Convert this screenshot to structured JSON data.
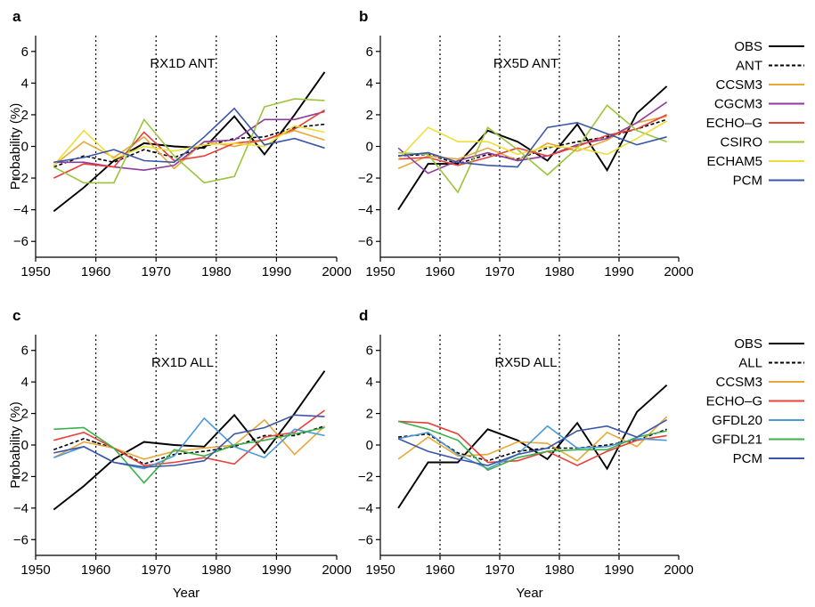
{
  "chart_data": [
    {
      "panel": "a",
      "title": "RX1D ANT",
      "type": "line",
      "xlabel": "",
      "ylabel": "Probability (%)",
      "xlim": [
        1950,
        2000
      ],
      "ylim": [
        -7,
        7
      ],
      "xticks": [
        1950,
        1960,
        1970,
        1980,
        1990,
        2000
      ],
      "yticks": [
        -6,
        -4,
        -2,
        0,
        2,
        4,
        6
      ],
      "vlines": [
        1960,
        1970,
        1980,
        1990
      ],
      "x": [
        1953,
        1958,
        1963,
        1968,
        1973,
        1978,
        1983,
        1988,
        1993,
        1998
      ],
      "series": [
        {
          "name": "OBS",
          "color": "#000000",
          "dash": "solid",
          "values": [
            -4.1,
            -2.6,
            -0.9,
            0.2,
            0.0,
            -0.1,
            1.9,
            -0.5,
            2.0,
            4.7
          ]
        },
        {
          "name": "ANT",
          "color": "#000000",
          "dash": "dashed",
          "values": [
            -1.3,
            -0.6,
            -1.0,
            -0.2,
            -0.7,
            0.0,
            0.5,
            0.6,
            1.2,
            1.4
          ]
        },
        {
          "name": "CCSM3",
          "color": "#E8A838",
          "dash": "solid",
          "values": [
            -1.2,
            0.3,
            -0.7,
            0.6,
            -1.4,
            0.3,
            0.0,
            0.4,
            1.0,
            0.4
          ]
        },
        {
          "name": "CGCM3",
          "color": "#8E3A9E",
          "dash": "solid",
          "values": [
            -1.0,
            -1.0,
            -1.3,
            -1.5,
            -1.2,
            0.3,
            0.4,
            1.7,
            1.7,
            2.2
          ]
        },
        {
          "name": "ECHO–G",
          "color": "#E8413A",
          "dash": "solid",
          "values": [
            -2.0,
            -1.1,
            -1.3,
            0.9,
            -0.9,
            -0.6,
            0.2,
            0.4,
            1.1,
            2.3
          ]
        },
        {
          "name": "CSIRO",
          "color": "#9CC43A",
          "dash": "solid",
          "values": [
            -1.3,
            -2.3,
            -2.3,
            1.7,
            -0.6,
            -2.3,
            -1.9,
            2.5,
            3.0,
            2.9
          ]
        },
        {
          "name": "ECHAM5",
          "color": "#EDDF3A",
          "dash": "solid",
          "values": [
            -1.2,
            1.0,
            -0.8,
            0.0,
            -0.3,
            0.1,
            0.2,
            0.0,
            1.3,
            0.9
          ]
        },
        {
          "name": "PCM",
          "color": "#3A56A8",
          "dash": "solid",
          "values": [
            -1.0,
            -0.7,
            -0.2,
            -0.9,
            -1.0,
            0.6,
            2.4,
            0.1,
            0.5,
            -0.1
          ]
        }
      ]
    },
    {
      "panel": "b",
      "title": "RX5D ANT",
      "type": "line",
      "xlabel": "",
      "ylabel": "",
      "xlim": [
        1950,
        2000
      ],
      "ylim": [
        -7,
        7
      ],
      "xticks": [
        1950,
        1960,
        1970,
        1980,
        1990,
        2000
      ],
      "yticks": [
        -6,
        -4,
        -2,
        0,
        2,
        4,
        6
      ],
      "vlines": [
        1960,
        1970,
        1980,
        1990
      ],
      "x": [
        1953,
        1958,
        1963,
        1968,
        1973,
        1978,
        1983,
        1988,
        1993,
        1998
      ],
      "series": [
        {
          "name": "OBS",
          "color": "#000000",
          "dash": "solid",
          "values": [
            -4.0,
            -1.1,
            -1.1,
            1.0,
            0.3,
            -0.9,
            1.4,
            -1.5,
            2.1,
            3.8
          ]
        },
        {
          "name": "ANT",
          "color": "#000000",
          "dash": "dashed",
          "values": [
            -0.6,
            -0.5,
            -1.1,
            -0.5,
            -0.8,
            -0.1,
            0.3,
            0.6,
            1.1,
            1.7
          ]
        },
        {
          "name": "CCSM3",
          "color": "#E8A838",
          "dash": "solid",
          "values": [
            -1.4,
            -0.6,
            -0.8,
            -0.1,
            -0.9,
            0.2,
            -0.3,
            0.4,
            1.5,
            1.9
          ]
        },
        {
          "name": "CGCM3",
          "color": "#8E3A9E",
          "dash": "solid",
          "values": [
            -0.1,
            -1.7,
            -0.9,
            -0.4,
            -0.9,
            -0.6,
            0.1,
            0.5,
            1.5,
            2.8
          ]
        },
        {
          "name": "ECHO–G",
          "color": "#E8413A",
          "dash": "solid",
          "values": [
            -0.8,
            -0.7,
            -1.2,
            -0.7,
            -0.1,
            -0.6,
            0.0,
            0.7,
            1.1,
            2.0
          ]
        },
        {
          "name": "CSIRO",
          "color": "#9CC43A",
          "dash": "solid",
          "values": [
            -0.4,
            -0.5,
            -2.9,
            1.2,
            -0.2,
            -1.8,
            -0.1,
            2.6,
            1.0,
            0.3
          ]
        },
        {
          "name": "ECHAM5",
          "color": "#EDDF3A",
          "dash": "solid",
          "values": [
            -0.8,
            1.2,
            0.3,
            0.3,
            -0.5,
            0.0,
            -0.1,
            -0.5,
            0.5,
            1.6
          ]
        },
        {
          "name": "PCM",
          "color": "#3A56A8",
          "dash": "solid",
          "values": [
            -0.6,
            -0.4,
            -1.0,
            -1.2,
            -1.3,
            1.2,
            1.5,
            0.8,
            0.1,
            0.6
          ]
        }
      ]
    },
    {
      "panel": "c",
      "title": "RX1D ALL",
      "type": "line",
      "xlabel": "Year",
      "ylabel": "Probability (%)",
      "xlim": [
        1950,
        2000
      ],
      "ylim": [
        -7,
        7
      ],
      "xticks": [
        1950,
        1960,
        1970,
        1980,
        1990,
        2000
      ],
      "yticks": [
        -6,
        -4,
        -2,
        0,
        2,
        4,
        6
      ],
      "vlines": [
        1960,
        1970,
        1980,
        1990
      ],
      "x": [
        1953,
        1958,
        1963,
        1968,
        1973,
        1978,
        1983,
        1988,
        1993,
        1998
      ],
      "series": [
        {
          "name": "OBS",
          "color": "#000000",
          "dash": "solid",
          "values": [
            -4.1,
            -2.6,
            -0.9,
            0.2,
            0.0,
            -0.1,
            1.9,
            -0.5,
            2.0,
            4.7
          ]
        },
        {
          "name": "ALL",
          "color": "#000000",
          "dash": "dashed",
          "values": [
            -0.3,
            0.4,
            -0.2,
            -1.2,
            -0.6,
            -0.4,
            -0.1,
            0.6,
            0.6,
            1.2
          ]
        },
        {
          "name": "CCSM3",
          "color": "#E8A838",
          "dash": "solid",
          "values": [
            -0.8,
            0.2,
            -0.2,
            -0.9,
            -0.4,
            -0.2,
            0.0,
            1.6,
            -0.6,
            1.2
          ]
        },
        {
          "name": "ECHO–G",
          "color": "#E8413A",
          "dash": "solid",
          "values": [
            0.3,
            0.8,
            -0.2,
            -1.3,
            -1.1,
            -0.8,
            -1.2,
            0.5,
            0.8,
            2.2
          ]
        },
        {
          "name": "GFDL20",
          "color": "#4A9AD8",
          "dash": "solid",
          "values": [
            -0.8,
            -0.1,
            -1.1,
            -1.5,
            -0.7,
            1.7,
            -0.1,
            -0.8,
            1.0,
            0.6
          ]
        },
        {
          "name": "GFDL21",
          "color": "#3CB04A",
          "dash": "solid",
          "values": [
            1.0,
            1.1,
            -0.2,
            -2.4,
            -0.3,
            -0.7,
            0.0,
            0.3,
            0.7,
            1.1
          ]
        },
        {
          "name": "PCM",
          "color": "#3A56A8",
          "dash": "solid",
          "values": [
            -0.5,
            -0.1,
            -1.1,
            -1.4,
            -1.3,
            -1.0,
            0.7,
            1.1,
            1.9,
            1.8
          ]
        }
      ]
    },
    {
      "panel": "d",
      "title": "RX5D ALL",
      "type": "line",
      "xlabel": "Year",
      "ylabel": "",
      "xlim": [
        1950,
        2000
      ],
      "ylim": [
        -7,
        7
      ],
      "xticks": [
        1950,
        1960,
        1970,
        1980,
        1990,
        2000
      ],
      "yticks": [
        -6,
        -4,
        -2,
        0,
        2,
        4,
        6
      ],
      "vlines": [
        1960,
        1970,
        1980,
        1990
      ],
      "x": [
        1953,
        1958,
        1963,
        1968,
        1973,
        1978,
        1983,
        1988,
        1993,
        1998
      ],
      "series": [
        {
          "name": "OBS",
          "color": "#000000",
          "dash": "solid",
          "values": [
            -4.0,
            -1.1,
            -1.1,
            1.0,
            0.3,
            -0.9,
            1.4,
            -1.5,
            2.1,
            3.8
          ]
        },
        {
          "name": "ALL",
          "color": "#000000",
          "dash": "dashed",
          "values": [
            0.5,
            0.7,
            -0.5,
            -1.0,
            -0.4,
            -0.2,
            -0.2,
            0.0,
            0.3,
            1.0
          ]
        },
        {
          "name": "CCSM3",
          "color": "#E8A838",
          "dash": "solid",
          "values": [
            -0.9,
            0.5,
            -0.7,
            -0.6,
            0.2,
            0.1,
            -1.0,
            0.8,
            -0.1,
            1.8
          ]
        },
        {
          "name": "ECHO–G",
          "color": "#E8413A",
          "dash": "solid",
          "values": [
            1.5,
            1.4,
            0.7,
            -1.1,
            -1.0,
            -0.4,
            -1.3,
            -0.4,
            0.3,
            0.6
          ]
        },
        {
          "name": "GFDL20",
          "color": "#4A9AD8",
          "dash": "solid",
          "values": [
            0.4,
            0.8,
            -0.6,
            -1.5,
            -0.6,
            1.2,
            -0.2,
            -0.1,
            0.4,
            0.3
          ]
        },
        {
          "name": "GFDL21",
          "color": "#3CB04A",
          "dash": "solid",
          "values": [
            1.5,
            1.0,
            0.3,
            -1.6,
            -0.8,
            -0.4,
            -0.3,
            -0.3,
            0.5,
            0.9
          ]
        },
        {
          "name": "PCM",
          "color": "#3A56A8",
          "dash": "solid",
          "values": [
            0.4,
            -0.4,
            -0.9,
            -1.3,
            -0.6,
            -0.2,
            0.9,
            1.2,
            0.5,
            1.6
          ]
        }
      ]
    }
  ],
  "legends": [
    {
      "for_panels": [
        "a",
        "b"
      ],
      "entries": [
        {
          "label": "OBS",
          "color": "#000000",
          "dash": "solid"
        },
        {
          "label": "ANT",
          "color": "#000000",
          "dash": "dashed"
        },
        {
          "label": "CCSM3",
          "color": "#E8A838",
          "dash": "solid"
        },
        {
          "label": "CGCM3",
          "color": "#8E3A9E",
          "dash": "solid"
        },
        {
          "label": "ECHO–G",
          "color": "#E8413A",
          "dash": "solid"
        },
        {
          "label": "CSIRO",
          "color": "#9CC43A",
          "dash": "solid"
        },
        {
          "label": "ECHAM5",
          "color": "#EDDF3A",
          "dash": "solid"
        },
        {
          "label": "PCM",
          "color": "#3A56A8",
          "dash": "solid"
        }
      ]
    },
    {
      "for_panels": [
        "c",
        "d"
      ],
      "entries": [
        {
          "label": "OBS",
          "color": "#000000",
          "dash": "solid"
        },
        {
          "label": "ALL",
          "color": "#000000",
          "dash": "dashed"
        },
        {
          "label": "CCSM3",
          "color": "#E8A838",
          "dash": "solid"
        },
        {
          "label": "ECHO–G",
          "color": "#E8413A",
          "dash": "solid"
        },
        {
          "label": "GFDL20",
          "color": "#4A9AD8",
          "dash": "solid"
        },
        {
          "label": "GFDL21",
          "color": "#3CB04A",
          "dash": "solid"
        },
        {
          "label": "PCM",
          "color": "#3A56A8",
          "dash": "solid"
        }
      ]
    }
  ]
}
